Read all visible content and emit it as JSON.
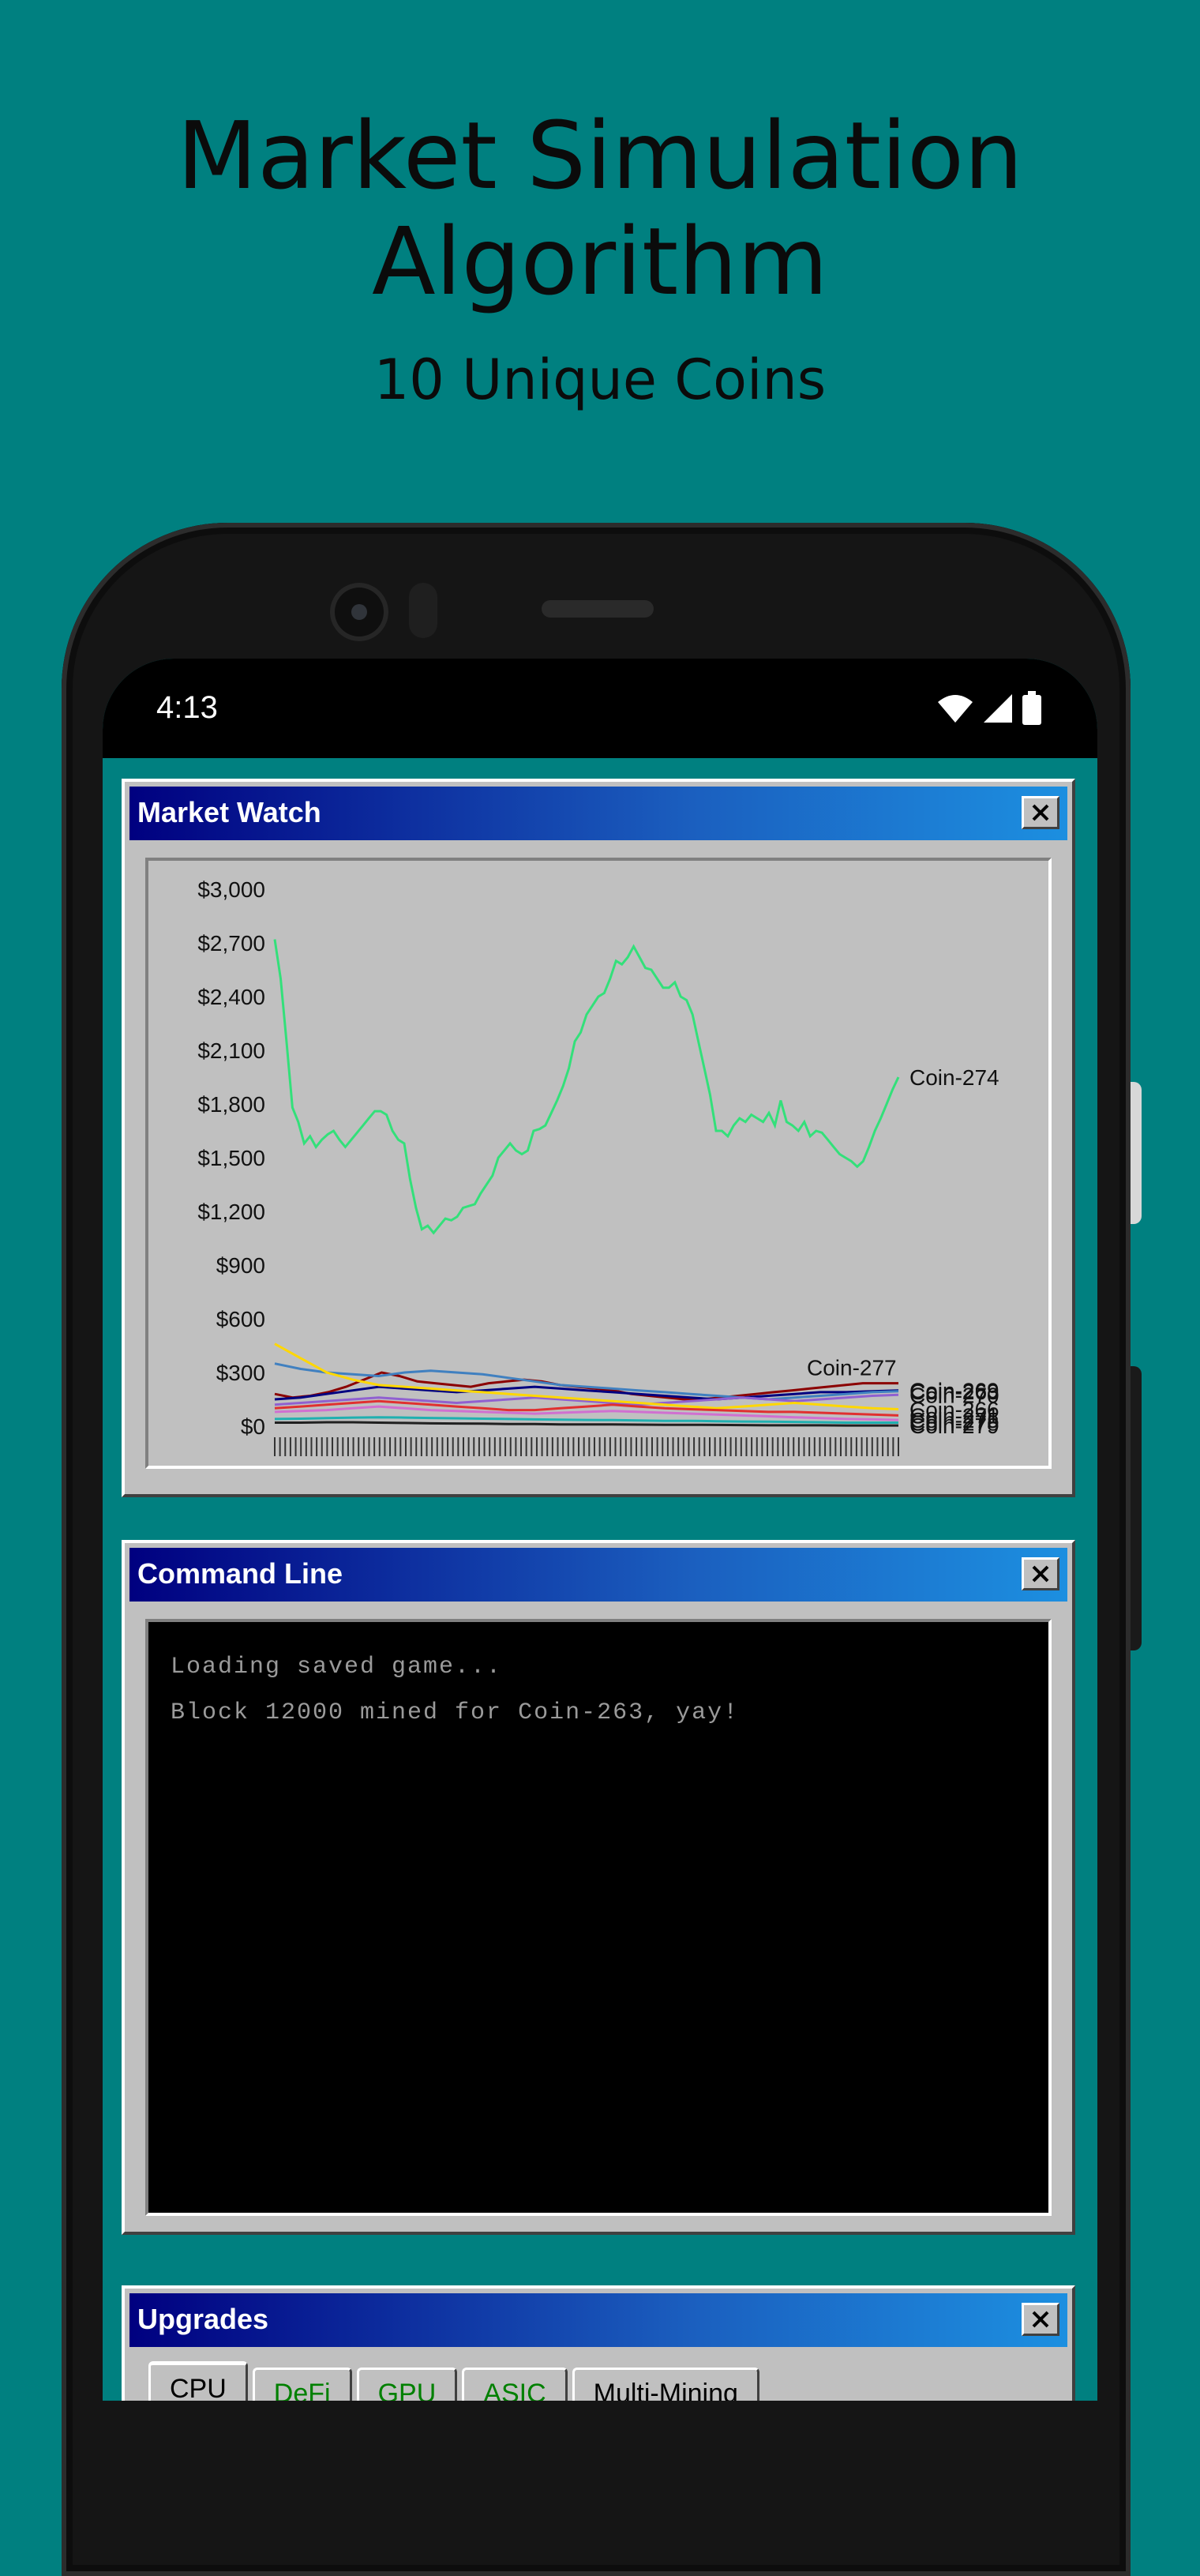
{
  "promo": {
    "title": "Market Simulation\nAlgorithm",
    "subtitle": "10 Unique Coins"
  },
  "status_bar": {
    "time": "4:13",
    "icons": [
      "wifi-icon",
      "signal-icon",
      "battery-icon"
    ]
  },
  "market_watch": {
    "title": "Market Watch",
    "close_label": "✕"
  },
  "command_line": {
    "title": "Command Line",
    "lines": [
      "Loading saved game...",
      "Block 12000 mined for Coin-263, yay!"
    ]
  },
  "upgrades": {
    "title": "Upgrades",
    "tabs": [
      "CPU",
      "DeFi",
      "GPU",
      "ASIC",
      "Multi-Mining"
    ],
    "active_tab": "CPU"
  },
  "colors": {
    "desktop": "#008080",
    "window": "#c0c0c0",
    "titlebar_start": "#000080",
    "titlebar_end": "#1c8fe0"
  },
  "chart_data": {
    "type": "line",
    "ylim": [
      0,
      3000
    ],
    "yticks": [
      "$0",
      "$300",
      "$600",
      "$900",
      "$1,200",
      "$1,500",
      "$1,800",
      "$2,100",
      "$2,400",
      "$2,700",
      "$3,000"
    ],
    "x_count": 120,
    "series": [
      {
        "name": "Coin-274",
        "color": "#33e07a",
        "values": [
          2720,
          2500,
          2150,
          1780,
          1700,
          1580,
          1620,
          1560,
          1600,
          1630,
          1650,
          1600,
          1560,
          1600,
          1640,
          1680,
          1720,
          1760,
          1760,
          1740,
          1650,
          1600,
          1580,
          1380,
          1220,
          1100,
          1120,
          1080,
          1120,
          1160,
          1150,
          1170,
          1220,
          1230,
          1240,
          1300,
          1350,
          1400,
          1500,
          1540,
          1580,
          1540,
          1520,
          1540,
          1650,
          1660,
          1680,
          1750,
          1820,
          1900,
          2000,
          2150,
          2200,
          2300,
          2350,
          2400,
          2420,
          2500,
          2600,
          2580,
          2620,
          2680,
          2620,
          2560,
          2550,
          2500,
          2450,
          2450,
          2480,
          2400,
          2380,
          2300,
          2150,
          2000,
          1850,
          1650,
          1650,
          1620,
          1680,
          1720,
          1700,
          1740,
          1720,
          1700,
          1750,
          1680,
          1820,
          1700,
          1680,
          1650,
          1700,
          1620,
          1650,
          1640,
          1600,
          1560,
          1520,
          1500,
          1480,
          1450,
          1480,
          1560,
          1650,
          1720,
          1800,
          1880,
          1950
        ]
      },
      {
        "name": "Coin-277",
        "color": "#8b0000",
        "values": [
          180,
          160,
          170,
          190,
          220,
          260,
          300,
          280,
          250,
          240,
          230,
          220,
          240,
          250,
          260,
          250,
          230,
          220,
          210,
          200,
          180,
          170,
          160,
          150,
          150,
          160,
          170,
          180,
          190,
          200,
          210,
          220,
          230,
          240,
          240,
          240
        ]
      },
      {
        "name": "Coin-269",
        "color": "#000080",
        "values": [
          150,
          160,
          180,
          200,
          220,
          210,
          200,
          190,
          200,
          210,
          220,
          210,
          200,
          190,
          180,
          170,
          160,
          150,
          160,
          170,
          180,
          190,
          190,
          195,
          200
        ]
      },
      {
        "name": "Coin-263",
        "color": "#4080c0",
        "values": [
          350,
          320,
          300,
          290,
          280,
          300,
          310,
          300,
          290,
          270,
          250,
          230,
          220,
          210,
          200,
          190,
          180,
          170,
          160,
          150,
          160,
          170,
          180,
          190,
          195
        ]
      },
      {
        "name": "Coin-270",
        "color": "#9060d0",
        "values": [
          120,
          130,
          140,
          150,
          160,
          150,
          140,
          130,
          140,
          150,
          160,
          150,
          140,
          130,
          120,
          130,
          140,
          150,
          160,
          150,
          140,
          150,
          160,
          170,
          175
        ]
      },
      {
        "name": "Coin-266",
        "color": "#ffd700",
        "values": [
          460,
          380,
          300,
          260,
          230,
          220,
          210,
          200,
          190,
          180,
          170,
          160,
          150,
          140,
          130,
          120,
          110,
          100,
          110,
          120,
          130,
          120,
          110,
          100,
          95
        ]
      },
      {
        "name": "Coin-271",
        "color": "#e03030",
        "values": [
          100,
          110,
          120,
          130,
          140,
          130,
          120,
          110,
          100,
          90,
          90,
          100,
          110,
          120,
          110,
          100,
          95,
          90,
          85,
          80,
          80,
          75,
          70,
          65,
          60
        ]
      },
      {
        "name": "Coin-275",
        "color": "#d070d0",
        "values": [
          80,
          85,
          90,
          100,
          110,
          100,
          90,
          85,
          80,
          75,
          70,
          75,
          80,
          85,
          80,
          75,
          70,
          65,
          60,
          55,
          50,
          45,
          40,
          38,
          35
        ]
      },
      {
        "name": "Coin-278",
        "color": "#20b0b0",
        "values": [
          40,
          42,
          45,
          48,
          50,
          48,
          46,
          44,
          42,
          40,
          38,
          36,
          35,
          34,
          32,
          30,
          30,
          28,
          26,
          25,
          24,
          22,
          20,
          20,
          20
        ]
      },
      {
        "name": "Coin-279",
        "color": "#202020",
        "values": [
          20,
          20,
          22,
          22,
          20,
          18,
          16,
          15,
          14,
          12,
          12,
          10,
          10,
          10,
          9,
          8,
          8,
          7,
          6,
          5,
          5,
          5,
          4,
          4,
          4
        ]
      }
    ]
  }
}
